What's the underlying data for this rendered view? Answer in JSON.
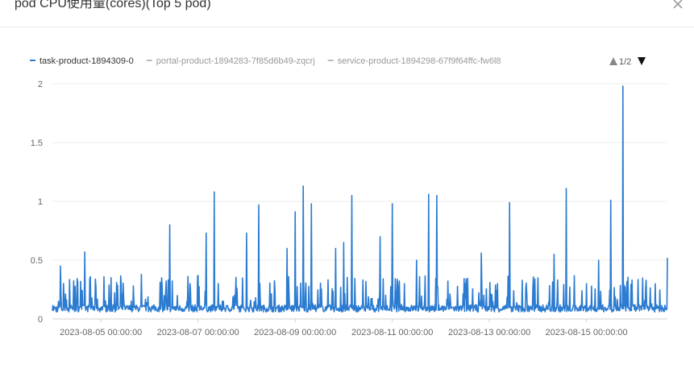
{
  "dialog": {
    "title": "pod CPU使用量(cores)(Top 5 pod)"
  },
  "legend": {
    "page": "1/2"
  },
  "chart_data": {
    "type": "line",
    "title": "",
    "xlabel": "",
    "ylabel": "",
    "ylim": [
      0,
      2
    ],
    "yticks": [
      "0",
      "0.5",
      "1",
      "1.5",
      "2"
    ],
    "x_range": [
      "2023-08-04 00:00:00",
      "2023-08-16 16:00:00"
    ],
    "xticks": [
      "2023-08-05 00:00:00",
      "2023-08-07 00:00:00",
      "2023-08-09 00:00:00",
      "2023-08-11 00:00:00",
      "2023-08-13 00:00:00",
      "2023-08-15 00:00:00"
    ],
    "grid": true,
    "legend_position": "top-left",
    "series": [
      {
        "name": "task-product-1894309-0",
        "color": "#2b7bd1",
        "visible": true,
        "values_description_note": "",
        "points": [
          [
            "2023-08-04 00:00:00",
            0.07
          ],
          [
            "2023-08-04 02:00:00",
            0.06
          ],
          [
            "2023-08-04 04:00:00",
            0.45
          ],
          [
            "2023-08-04 05:00:00",
            0.07
          ],
          [
            "2023-08-04 08:00:00",
            0.06
          ],
          [
            "2023-08-04 12:00:00",
            0.1
          ],
          [
            "2023-08-04 14:00:00",
            0.32
          ],
          [
            "2023-08-04 16:00:00",
            0.57
          ],
          [
            "2023-08-04 18:00:00",
            0.1
          ],
          [
            "2023-08-05 00:00:00",
            0.08
          ],
          [
            "2023-08-05 06:00:00",
            0.12
          ],
          [
            "2023-08-05 10:00:00",
            0.31
          ],
          [
            "2023-08-05 12:00:00",
            0.08
          ],
          [
            "2023-08-05 16:00:00",
            0.28
          ],
          [
            "2023-08-05 20:00:00",
            0.38
          ],
          [
            "2023-08-06 00:00:00",
            0.1
          ],
          [
            "2023-08-06 06:00:00",
            0.35
          ],
          [
            "2023-08-06 10:00:00",
            0.8
          ],
          [
            "2023-08-06 12:00:00",
            0.1
          ],
          [
            "2023-08-06 20:00:00",
            0.3
          ],
          [
            "2023-08-07 00:00:00",
            0.37
          ],
          [
            "2023-08-07 04:00:00",
            0.73
          ],
          [
            "2023-08-07 08:00:00",
            1.08
          ],
          [
            "2023-08-07 12:00:00",
            0.15
          ],
          [
            "2023-08-07 18:00:00",
            0.2
          ],
          [
            "2023-08-08 00:00:00",
            0.73
          ],
          [
            "2023-08-08 06:00:00",
            0.97
          ],
          [
            "2023-08-08 12:00:00",
            0.1
          ],
          [
            "2023-08-08 20:00:00",
            0.6
          ],
          [
            "2023-08-09 00:00:00",
            0.91
          ],
          [
            "2023-08-09 04:00:00",
            1.13
          ],
          [
            "2023-08-09 08:00:00",
            0.98
          ],
          [
            "2023-08-09 12:00:00",
            0.12
          ],
          [
            "2023-08-09 20:00:00",
            0.6
          ],
          [
            "2023-08-10 00:00:00",
            0.65
          ],
          [
            "2023-08-10 04:00:00",
            1.05
          ],
          [
            "2023-08-10 12:00:00",
            0.1
          ],
          [
            "2023-08-10 18:00:00",
            0.7
          ],
          [
            "2023-08-11 00:00:00",
            0.98
          ],
          [
            "2023-08-11 06:00:00",
            0.3
          ],
          [
            "2023-08-11 12:00:00",
            0.5
          ],
          [
            "2023-08-11 18:00:00",
            1.06
          ],
          [
            "2023-08-11 22:00:00",
            1.05
          ],
          [
            "2023-08-12 06:00:00",
            0.1
          ],
          [
            "2023-08-12 12:00:00",
            0.3
          ],
          [
            "2023-08-12 20:00:00",
            0.56
          ],
          [
            "2023-08-13 04:00:00",
            0.3
          ],
          [
            "2023-08-13 10:00:00",
            0.99
          ],
          [
            "2023-08-13 16:00:00",
            0.1
          ],
          [
            "2023-08-14 00:00:00",
            0.35
          ],
          [
            "2023-08-14 08:00:00",
            0.55
          ],
          [
            "2023-08-14 14:00:00",
            1.11
          ],
          [
            "2023-08-15 00:00:00",
            0.3
          ],
          [
            "2023-08-15 06:00:00",
            0.5
          ],
          [
            "2023-08-15 12:00:00",
            1.01
          ],
          [
            "2023-08-15 18:00:00",
            1.98
          ],
          [
            "2023-08-16 00:00:00",
            0.12
          ],
          [
            "2023-08-16 10:00:00",
            0.3
          ],
          [
            "2023-08-16 16:00:00",
            0.52
          ]
        ]
      },
      {
        "name": "portal-product-1894283-7f85d6b49-zqcrj",
        "color": "#bbbbbb",
        "visible": false
      },
      {
        "name": "service-product-1894298-67f9f64ffc-fw6l8",
        "color": "#bbbbbb",
        "visible": false
      }
    ]
  }
}
